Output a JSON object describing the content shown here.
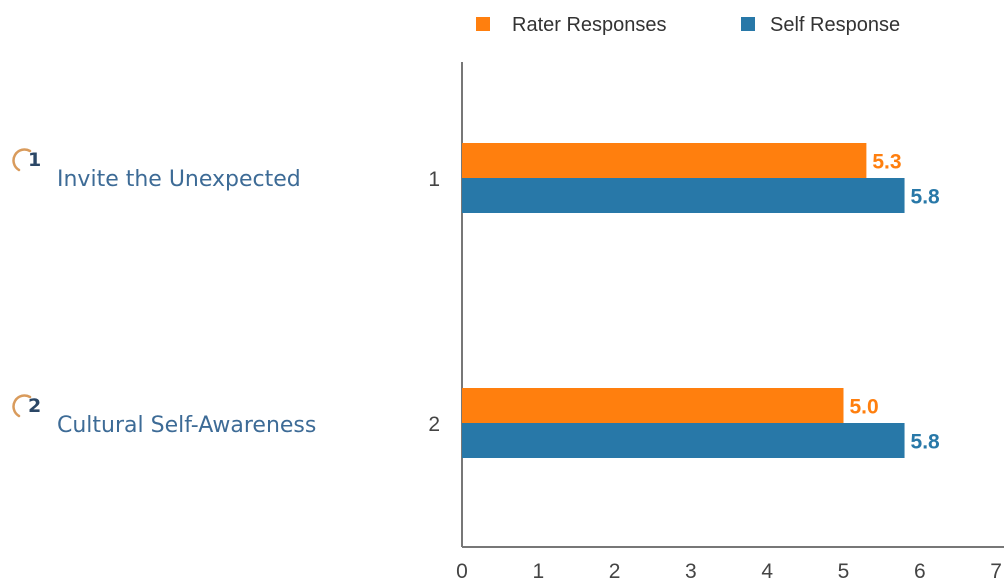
{
  "items": [
    {
      "number": "1",
      "label": "Invite the Unexpected"
    },
    {
      "number": "2",
      "label": "Cultural Self-Awareness"
    }
  ],
  "colors": {
    "rater": "#ff7f0e",
    "self": "#2878a8",
    "item_label": "#3d6b96",
    "item_number": "#2b4766",
    "badge_arc": "#d99b5c"
  },
  "chart_data": {
    "type": "bar",
    "orientation": "horizontal",
    "categories": [
      "1",
      "2"
    ],
    "series": [
      {
        "name": "Rater Responses",
        "values": [
          5.3,
          5.0
        ],
        "color": "#ff7f0e"
      },
      {
        "name": "Self Response",
        "values": [
          5.8,
          5.8
        ],
        "color": "#2878a8"
      }
    ],
    "data_labels": [
      [
        "5.3",
        "5.0"
      ],
      [
        "5.8",
        "5.8"
      ]
    ],
    "x_ticks": [
      "0",
      "1",
      "2",
      "3",
      "4",
      "5",
      "6",
      "7"
    ],
    "xlim": [
      0,
      7
    ],
    "legend_position": "top",
    "grid": false
  }
}
